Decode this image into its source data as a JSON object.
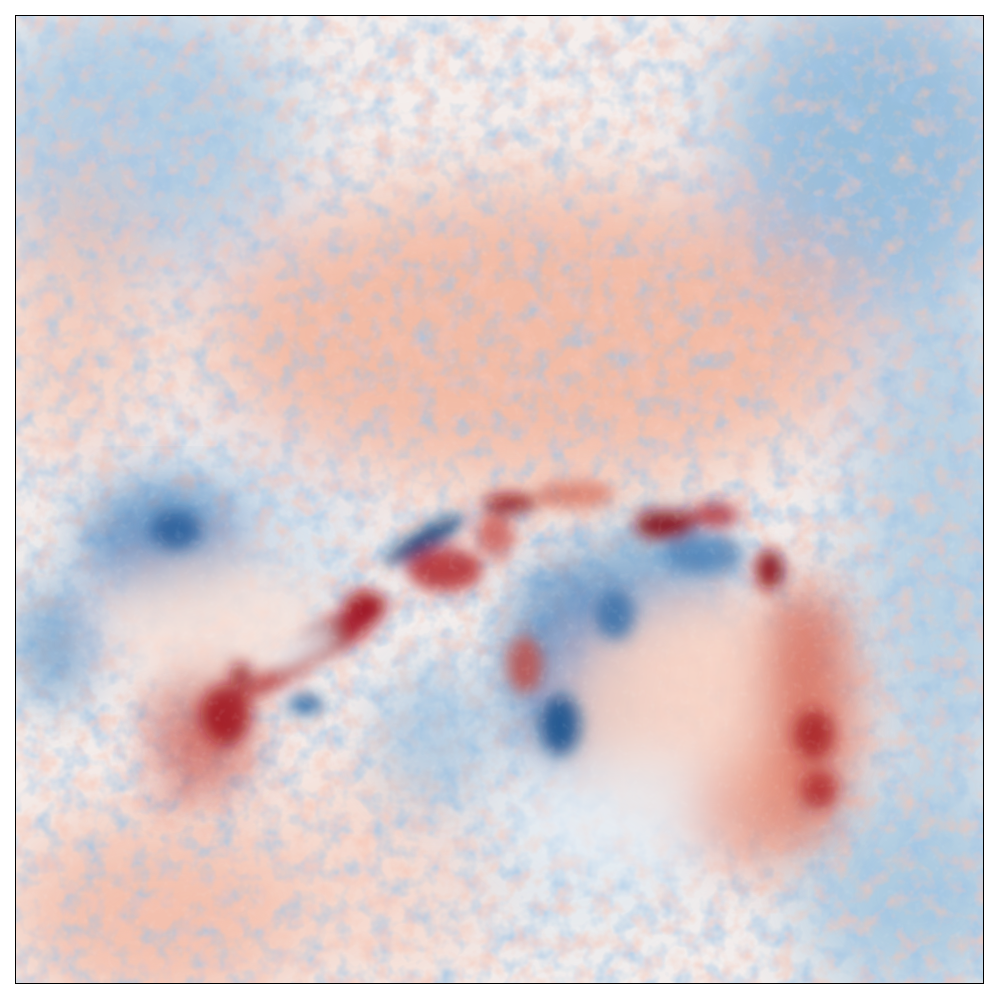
{
  "image": {
    "kind": "solar-magnetogram-like diverging colormap image",
    "colormap": {
      "name": "RdBu_r",
      "negative": "#08306b",
      "mid": "#f7f7f7",
      "positive": "#67000d"
    },
    "axes": {
      "ticks_visible": false,
      "frame_visible": true
    }
  }
}
